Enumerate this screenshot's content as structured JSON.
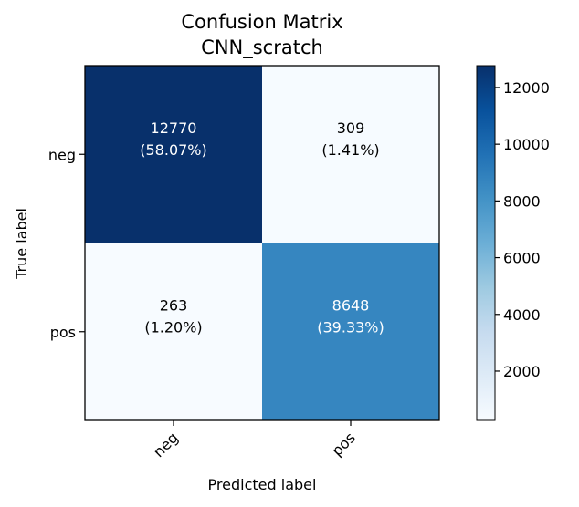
{
  "chart_data": {
    "type": "heatmap",
    "title": "Confusion Matrix",
    "subtitle": "CNN_scratch",
    "xlabel": "Predicted label",
    "ylabel": "True label",
    "x_categories": [
      "neg",
      "pos"
    ],
    "y_categories": [
      "neg",
      "pos"
    ],
    "values": [
      [
        12770,
        309
      ],
      [
        263,
        8648
      ]
    ],
    "cell_labels": [
      [
        "12770",
        "(58.07%)",
        "309",
        "(1.41%)"
      ],
      [
        "263",
        "(1.20%)",
        "8648",
        "(39.33%)"
      ]
    ],
    "colorbar": {
      "ticks": [
        "2000",
        "4000",
        "6000",
        "8000",
        "10000",
        "12000"
      ],
      "tick_values": [
        2000,
        4000,
        6000,
        8000,
        10000,
        12000
      ],
      "range": [
        263,
        12770
      ],
      "colormap": "Blues"
    },
    "colors": {
      "low": "#f7fbff",
      "mid": "#3787c0",
      "high": "#08306b",
      "text_light": "#ffffff",
      "text_dark": "#000000"
    }
  }
}
